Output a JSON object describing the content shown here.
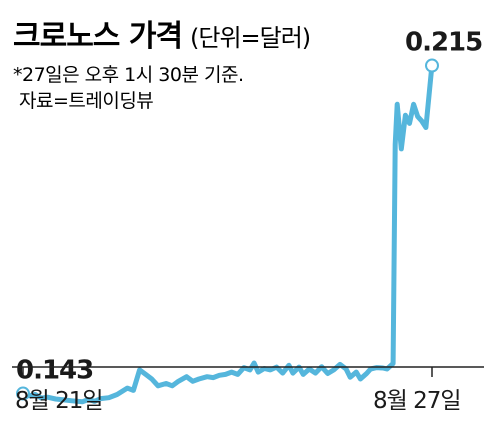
{
  "chart_data": {
    "type": "line",
    "title": "크로노스 가격",
    "unit": "(단위=달러)",
    "notes": [
      "*27일은 오후 1시 30분 기준.",
      "자료=트레이딩뷰"
    ],
    "x_tick_labels": [
      "8월 21일",
      "8월 27일"
    ],
    "annotations": [
      {
        "label": "0.143",
        "x": 0,
        "y": 0.143
      },
      {
        "label": "0.215",
        "x": 100,
        "y": 0.215
      }
    ],
    "ylim": [
      0.135,
      0.225
    ],
    "colors": {
      "line": "#55b6dc",
      "text": "#1a1a1a",
      "axis": "#222222"
    },
    "series": [
      {
        "values": [
          [
            0,
            0.143
          ],
          [
            1.5,
            0.1425
          ],
          [
            3,
            0.1428
          ],
          [
            4.5,
            0.142
          ],
          [
            6,
            0.1422
          ],
          [
            8,
            0.1418
          ],
          [
            10,
            0.1416
          ],
          [
            12,
            0.1414
          ],
          [
            14.5,
            0.1412
          ],
          [
            16,
            0.1417
          ],
          [
            17.5,
            0.1413
          ],
          [
            19,
            0.1419
          ],
          [
            21,
            0.1421
          ],
          [
            23,
            0.1428
          ],
          [
            25.5,
            0.1442
          ],
          [
            27,
            0.1437
          ],
          [
            28.5,
            0.1482
          ],
          [
            30,
            0.1472
          ],
          [
            31.5,
            0.1462
          ],
          [
            33,
            0.1447
          ],
          [
            35,
            0.1452
          ],
          [
            36.5,
            0.1447
          ],
          [
            38,
            0.1457
          ],
          [
            40,
            0.1467
          ],
          [
            41.5,
            0.1457
          ],
          [
            43,
            0.1462
          ],
          [
            45,
            0.1467
          ],
          [
            46.5,
            0.1465
          ],
          [
            48,
            0.147
          ],
          [
            49.5,
            0.1472
          ],
          [
            51,
            0.1477
          ],
          [
            52.5,
            0.1472
          ],
          [
            54,
            0.1487
          ],
          [
            55.5,
            0.1482
          ],
          [
            56.5,
            0.1497
          ],
          [
            57.5,
            0.1477
          ],
          [
            59,
            0.1485
          ],
          [
            60.5,
            0.1482
          ],
          [
            62,
            0.1488
          ],
          [
            63.5,
            0.1475
          ],
          [
            65,
            0.1492
          ],
          [
            66,
            0.1475
          ],
          [
            67.5,
            0.1488
          ],
          [
            68.5,
            0.1472
          ],
          [
            70,
            0.1484
          ],
          [
            71.5,
            0.1475
          ],
          [
            73,
            0.1489
          ],
          [
            74.5,
            0.1474
          ],
          [
            76,
            0.1482
          ],
          [
            77.5,
            0.1494
          ],
          [
            79,
            0.1484
          ],
          [
            80,
            0.1466
          ],
          [
            81.5,
            0.1477
          ],
          [
            82.5,
            0.1462
          ],
          [
            84,
            0.1474
          ],
          [
            85,
            0.1484
          ],
          [
            86.5,
            0.1487
          ],
          [
            88,
            0.1486
          ],
          [
            89,
            0.1484
          ],
          [
            90.5,
            0.1496
          ],
          [
            91,
            0.1977
          ],
          [
            91.5,
            0.2065
          ],
          [
            92.5,
            0.1967
          ],
          [
            93.5,
            0.2041
          ],
          [
            94.5,
            0.2023
          ],
          [
            95.5,
            0.2065
          ],
          [
            96.5,
            0.2038
          ],
          [
            97.5,
            0.2028
          ],
          [
            98.5,
            0.2014
          ],
          [
            100,
            0.2152
          ]
        ]
      }
    ]
  }
}
